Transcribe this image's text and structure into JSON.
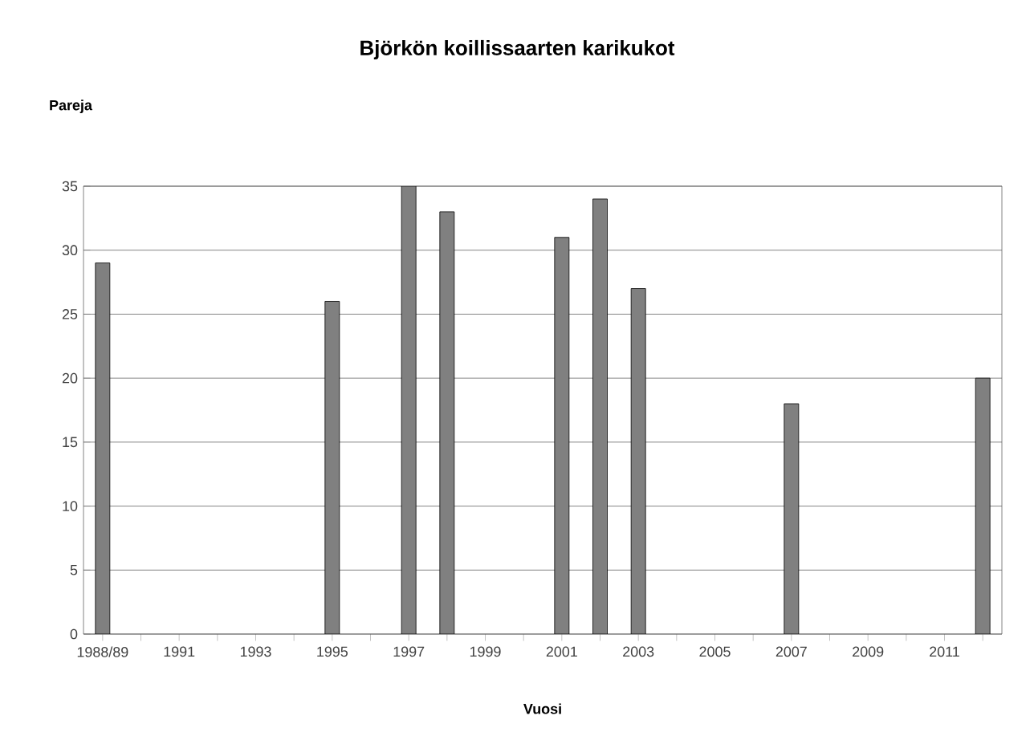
{
  "chart_data": {
    "type": "bar",
    "title": "Björkön koillissaarten karikukot",
    "xlabel": "Vuosi",
    "ylabel": "Pareja",
    "categories": [
      "1988/89",
      null,
      "1991",
      null,
      "1993",
      null,
      "1995",
      null,
      "1997",
      null,
      "1999",
      null,
      "2001",
      null,
      "2003",
      null,
      "2005",
      null,
      "2007",
      null,
      "2009",
      null,
      "2011",
      null
    ],
    "values": [
      29,
      null,
      null,
      null,
      null,
      null,
      26,
      null,
      35,
      33,
      null,
      null,
      31,
      34,
      27,
      null,
      null,
      null,
      18,
      null,
      null,
      null,
      null,
      20
    ],
    "color": "#808080",
    "ylim": [
      0,
      35
    ],
    "yticks": [
      0,
      5,
      10,
      15,
      20,
      25,
      30,
      35
    ],
    "grid": "y"
  }
}
